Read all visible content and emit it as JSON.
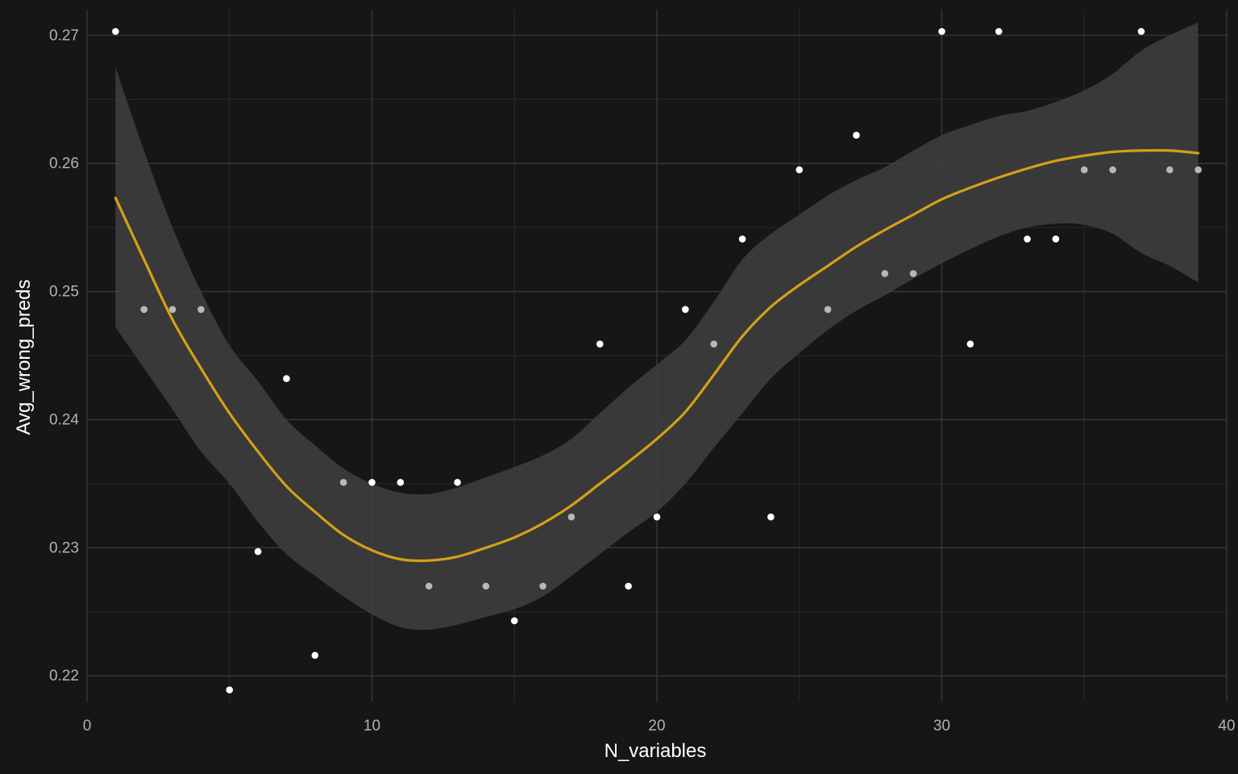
{
  "chart_data": {
    "type": "scatter",
    "title": "",
    "xlabel": "N_variables",
    "ylabel": "Avg_wrong_preds",
    "xlim": [
      0,
      40
    ],
    "ylim": [
      0.218,
      0.272
    ],
    "x_ticks": [
      0,
      10,
      20,
      30,
      40
    ],
    "x_tick_labels": [
      "0",
      "10",
      "20",
      "30",
      "40"
    ],
    "y_ticks": [
      0.22,
      0.23,
      0.24,
      0.25,
      0.26,
      0.27
    ],
    "y_tick_labels": [
      "0.22",
      "0.23",
      "0.24",
      "0.25",
      "0.26",
      "0.27"
    ],
    "grid": true,
    "legend": "none",
    "colors": {
      "background": "#161616",
      "grid_major": "#3a3a3a",
      "grid_minor": "#2a2a2a",
      "points": "#ffffff",
      "smooth_line": "#d4a017",
      "confidence_band": "#404040"
    },
    "points": [
      {
        "x": 1,
        "y": 0.2703
      },
      {
        "x": 2,
        "y": 0.2486
      },
      {
        "x": 3,
        "y": 0.2486
      },
      {
        "x": 4,
        "y": 0.2486
      },
      {
        "x": 5,
        "y": 0.2189
      },
      {
        "x": 6,
        "y": 0.2297
      },
      {
        "x": 7,
        "y": 0.2432
      },
      {
        "x": 8,
        "y": 0.2216
      },
      {
        "x": 9,
        "y": 0.2351
      },
      {
        "x": 10,
        "y": 0.2351
      },
      {
        "x": 11,
        "y": 0.2351
      },
      {
        "x": 12,
        "y": 0.227
      },
      {
        "x": 13,
        "y": 0.2351
      },
      {
        "x": 14,
        "y": 0.227
      },
      {
        "x": 15,
        "y": 0.2243
      },
      {
        "x": 16,
        "y": 0.227
      },
      {
        "x": 17,
        "y": 0.2324
      },
      {
        "x": 18,
        "y": 0.2459
      },
      {
        "x": 19,
        "y": 0.227
      },
      {
        "x": 20,
        "y": 0.2324
      },
      {
        "x": 21,
        "y": 0.2486
      },
      {
        "x": 22,
        "y": 0.2459
      },
      {
        "x": 23,
        "y": 0.2541
      },
      {
        "x": 24,
        "y": 0.2324
      },
      {
        "x": 25,
        "y": 0.2595
      },
      {
        "x": 26,
        "y": 0.2486
      },
      {
        "x": 27,
        "y": 0.2622
      },
      {
        "x": 28,
        "y": 0.2514
      },
      {
        "x": 29,
        "y": 0.2514
      },
      {
        "x": 30,
        "y": 0.2703
      },
      {
        "x": 31,
        "y": 0.2459
      },
      {
        "x": 32,
        "y": 0.2703
      },
      {
        "x": 33,
        "y": 0.2541
      },
      {
        "x": 34,
        "y": 0.2541
      },
      {
        "x": 35,
        "y": 0.2595
      },
      {
        "x": 36,
        "y": 0.2595
      },
      {
        "x": 37,
        "y": 0.2703
      },
      {
        "x": 38,
        "y": 0.2595
      },
      {
        "x": 39,
        "y": 0.2595
      }
    ],
    "smooth": [
      {
        "x": 1,
        "y": 0.2573,
        "lo": 0.2472,
        "hi": 0.2675
      },
      {
        "x": 2,
        "y": 0.2525,
        "lo": 0.244,
        "hi": 0.261
      },
      {
        "x": 3,
        "y": 0.2478,
        "lo": 0.2408,
        "hi": 0.255
      },
      {
        "x": 4,
        "y": 0.244,
        "lo": 0.2375,
        "hi": 0.25
      },
      {
        "x": 5,
        "y": 0.2405,
        "lo": 0.235,
        "hi": 0.2458
      },
      {
        "x": 6,
        "y": 0.2375,
        "lo": 0.232,
        "hi": 0.243
      },
      {
        "x": 7,
        "y": 0.2348,
        "lo": 0.2295,
        "hi": 0.24
      },
      {
        "x": 8,
        "y": 0.2328,
        "lo": 0.2278,
        "hi": 0.238
      },
      {
        "x": 9,
        "y": 0.231,
        "lo": 0.2262,
        "hi": 0.2362
      },
      {
        "x": 10,
        "y": 0.2298,
        "lo": 0.2248,
        "hi": 0.235
      },
      {
        "x": 11,
        "y": 0.2291,
        "lo": 0.2238,
        "hi": 0.2343
      },
      {
        "x": 12,
        "y": 0.229,
        "lo": 0.2236,
        "hi": 0.2342
      },
      {
        "x": 13,
        "y": 0.2293,
        "lo": 0.224,
        "hi": 0.2347
      },
      {
        "x": 14,
        "y": 0.23,
        "lo": 0.2246,
        "hi": 0.2355
      },
      {
        "x": 15,
        "y": 0.2308,
        "lo": 0.2252,
        "hi": 0.2363
      },
      {
        "x": 16,
        "y": 0.2319,
        "lo": 0.2262,
        "hi": 0.2372
      },
      {
        "x": 17,
        "y": 0.2333,
        "lo": 0.2278,
        "hi": 0.2385
      },
      {
        "x": 18,
        "y": 0.235,
        "lo": 0.2295,
        "hi": 0.2405
      },
      {
        "x": 19,
        "y": 0.2367,
        "lo": 0.2312,
        "hi": 0.2425
      },
      {
        "x": 20,
        "y": 0.2385,
        "lo": 0.2328,
        "hi": 0.2443
      },
      {
        "x": 21,
        "y": 0.2406,
        "lo": 0.235,
        "hi": 0.2462
      },
      {
        "x": 22,
        "y": 0.2435,
        "lo": 0.2378,
        "hi": 0.2492
      },
      {
        "x": 23,
        "y": 0.2465,
        "lo": 0.2405,
        "hi": 0.2525
      },
      {
        "x": 24,
        "y": 0.2488,
        "lo": 0.2432,
        "hi": 0.2545
      },
      {
        "x": 25,
        "y": 0.2505,
        "lo": 0.2452,
        "hi": 0.256
      },
      {
        "x": 26,
        "y": 0.252,
        "lo": 0.247,
        "hi": 0.2575
      },
      {
        "x": 27,
        "y": 0.2535,
        "lo": 0.2485,
        "hi": 0.2587
      },
      {
        "x": 28,
        "y": 0.2548,
        "lo": 0.2497,
        "hi": 0.2597
      },
      {
        "x": 29,
        "y": 0.256,
        "lo": 0.251,
        "hi": 0.261
      },
      {
        "x": 30,
        "y": 0.2572,
        "lo": 0.2522,
        "hi": 0.2622
      },
      {
        "x": 31,
        "y": 0.2581,
        "lo": 0.2533,
        "hi": 0.263
      },
      {
        "x": 32,
        "y": 0.2589,
        "lo": 0.2543,
        "hi": 0.2637
      },
      {
        "x": 33,
        "y": 0.2596,
        "lo": 0.255,
        "hi": 0.2641
      },
      {
        "x": 34,
        "y": 0.2602,
        "lo": 0.2553,
        "hi": 0.2648
      },
      {
        "x": 35,
        "y": 0.2606,
        "lo": 0.2552,
        "hi": 0.2657
      },
      {
        "x": 36,
        "y": 0.2609,
        "lo": 0.2545,
        "hi": 0.267
      },
      {
        "x": 37,
        "y": 0.261,
        "lo": 0.253,
        "hi": 0.2688
      },
      {
        "x": 38,
        "y": 0.261,
        "lo": 0.252,
        "hi": 0.27
      },
      {
        "x": 39,
        "y": 0.2608,
        "lo": 0.2507,
        "hi": 0.271
      }
    ]
  }
}
